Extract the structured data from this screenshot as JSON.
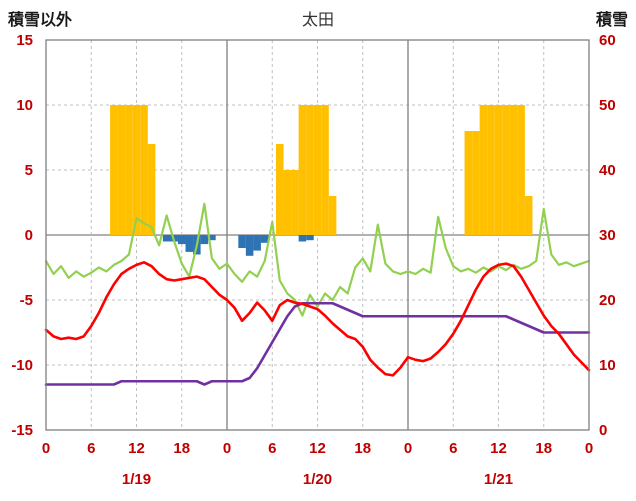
{
  "header": {
    "left_label": "積雪以外",
    "title": "太田",
    "right_label": "積雪"
  },
  "colors": {
    "tick_text": "#c00000",
    "grid": "#bfbfbf",
    "axis": "#808080",
    "orange": "#ffc000",
    "blue": "#2e74b5",
    "red": "#ff0000",
    "green": "#92d050",
    "purple": "#7030a0"
  },
  "chart_data": {
    "type": "bar",
    "subtype": "combo line+bar, hourly over 3 days",
    "title": "太田",
    "left_axis": {
      "label": "積雪以外",
      "min": -15,
      "max": 15,
      "ticks": [
        15,
        10,
        5,
        0,
        -5,
        -10,
        -15
      ]
    },
    "right_axis": {
      "label": "積雪",
      "min": 0,
      "max": 60,
      "ticks": [
        60,
        50,
        40,
        30,
        20,
        10,
        0
      ]
    },
    "x_axis": {
      "start_hour": 0,
      "end_hour": 72,
      "tick_step": 6,
      "tick_labels": [
        "0",
        "6",
        "12",
        "18",
        "0",
        "6",
        "12",
        "18",
        "0",
        "6",
        "12",
        "18",
        "0"
      ],
      "day_labels": [
        "1/19",
        "1/20",
        "1/21"
      ]
    },
    "series": [
      {
        "name": "orange-bars",
        "type": "bar",
        "axis": "left",
        "color": "#ffc000",
        "values": [
          0,
          0,
          0,
          0,
          0,
          0,
          0,
          0,
          0,
          10,
          10,
          10,
          10,
          10,
          7,
          0,
          0,
          0,
          0,
          0,
          0,
          0,
          0,
          0,
          0,
          0,
          0,
          0,
          0,
          0,
          0,
          7,
          5,
          5,
          10,
          10,
          10,
          10,
          3,
          0,
          0,
          0,
          0,
          0,
          0,
          0,
          0,
          0,
          0,
          0,
          0,
          0,
          0,
          0,
          0,
          0,
          8,
          8,
          10,
          10,
          10,
          10,
          10,
          10,
          3,
          0,
          0,
          0,
          0,
          0,
          0,
          0,
          0
        ]
      },
      {
        "name": "blue-bars",
        "type": "bar",
        "axis": "left",
        "color": "#2e74b5",
        "values": [
          0,
          0,
          0,
          0,
          0,
          0,
          0,
          0,
          0,
          0,
          0,
          0,
          0,
          0,
          0,
          0,
          -0.5,
          -0.5,
          -0.7,
          -1.3,
          -1.5,
          -0.7,
          -0.4,
          0,
          0,
          0,
          -1,
          -1.6,
          -1.2,
          -0.6,
          0,
          0,
          0,
          0,
          -0.5,
          -0.4,
          0,
          0,
          0,
          0,
          0,
          0,
          0,
          0,
          0,
          0,
          0,
          0,
          0,
          0,
          0,
          0,
          0,
          0,
          0,
          0,
          0,
          0,
          0,
          0,
          0,
          0,
          0,
          0,
          0,
          0,
          0,
          0,
          0,
          0,
          0,
          0,
          0
        ]
      },
      {
        "name": "green-line",
        "type": "line",
        "axis": "left",
        "color": "#92d050",
        "width": 2.2,
        "values": [
          -2.0,
          -3.0,
          -2.4,
          -3.3,
          -2.8,
          -3.2,
          -2.9,
          -2.5,
          -2.8,
          -2.3,
          -2.0,
          -1.5,
          1.3,
          0.9,
          0.6,
          -0.8,
          1.5,
          -0.5,
          -2.2,
          -3.2,
          -0.8,
          2.4,
          -1.8,
          -2.6,
          -2.2,
          -3.0,
          -3.6,
          -2.8,
          -3.2,
          -2.0,
          1.0,
          -3.5,
          -4.5,
          -5.0,
          -6.2,
          -4.6,
          -5.5,
          -4.5,
          -5.0,
          -4.0,
          -4.5,
          -2.5,
          -1.8,
          -2.8,
          0.8,
          -2.2,
          -2.8,
          -3.0,
          -2.8,
          -3.0,
          -2.6,
          -2.9,
          1.4,
          -1.0,
          -2.4,
          -2.8,
          -2.6,
          -2.9,
          -2.5,
          -2.8,
          -2.4,
          -2.7,
          -2.3,
          -2.6,
          -2.4,
          -2.0,
          2.0,
          -1.5,
          -2.3,
          -2.1,
          -2.4,
          -2.2,
          -2.0
        ]
      },
      {
        "name": "purple-line",
        "type": "line",
        "axis": "right",
        "color": "#7030a0",
        "width": 2.6,
        "values": [
          7,
          7,
          7,
          7,
          7,
          7,
          7,
          7,
          7,
          7,
          7.5,
          7.5,
          7.5,
          7.5,
          7.5,
          7.5,
          7.5,
          7.5,
          7.5,
          7.5,
          7.5,
          7,
          7.5,
          7.5,
          7.5,
          7.5,
          7.5,
          8,
          9.5,
          11.5,
          13.5,
          15.5,
          17.5,
          19,
          19.5,
          19.5,
          19.5,
          19.5,
          19.5,
          19,
          18.5,
          18,
          17.5,
          17.5,
          17.5,
          17.5,
          17.5,
          17.5,
          17.5,
          17.5,
          17.5,
          17.5,
          17.5,
          17.5,
          17.5,
          17.5,
          17.5,
          17.5,
          17.5,
          17.5,
          17.5,
          17.5,
          17,
          16.5,
          16,
          15.5,
          15,
          15,
          15,
          15,
          15,
          15,
          15
        ]
      },
      {
        "name": "red-line",
        "type": "line",
        "axis": "left",
        "color": "#ff0000",
        "width": 2.6,
        "values": [
          -7.3,
          -7.8,
          -8.0,
          -7.9,
          -8.0,
          -7.8,
          -7.0,
          -6.0,
          -4.8,
          -3.8,
          -3.0,
          -2.6,
          -2.3,
          -2.1,
          -2.4,
          -3.0,
          -3.4,
          -3.5,
          -3.4,
          -3.3,
          -3.2,
          -3.4,
          -4.0,
          -4.6,
          -5.0,
          -5.6,
          -6.6,
          -6.0,
          -5.2,
          -5.8,
          -6.6,
          -5.4,
          -5.0,
          -5.2,
          -5.3,
          -5.5,
          -5.7,
          -6.2,
          -6.8,
          -7.3,
          -7.8,
          -8.0,
          -8.6,
          -9.6,
          -10.2,
          -10.7,
          -10.8,
          -10.2,
          -9.4,
          -9.6,
          -9.7,
          -9.5,
          -9.0,
          -8.4,
          -7.6,
          -6.6,
          -5.4,
          -4.2,
          -3.2,
          -2.6,
          -2.3,
          -2.2,
          -2.4,
          -3.2,
          -4.2,
          -5.2,
          -6.2,
          -7.0,
          -7.6,
          -8.4,
          -9.2,
          -9.8,
          -10.4
        ]
      }
    ]
  }
}
